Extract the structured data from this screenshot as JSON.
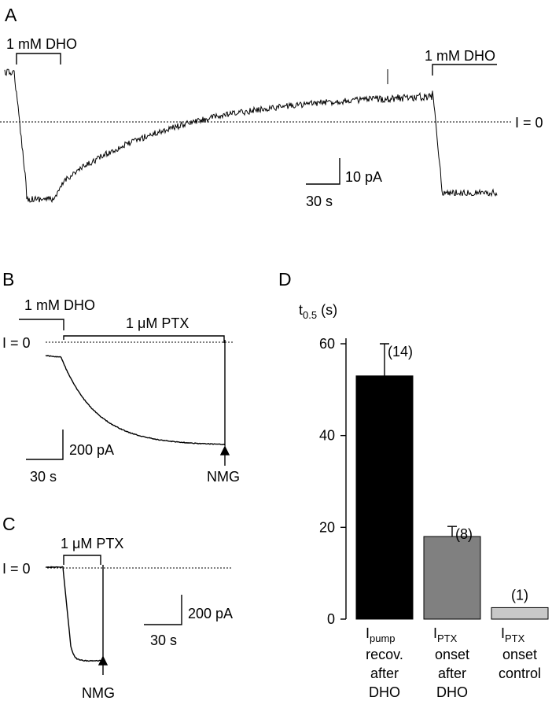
{
  "panels": {
    "a": {
      "letter": "A",
      "drug_label_1": "1 mM DHO",
      "drug_label_2": "1 mM DHO",
      "zero_label": "I = 0",
      "scale_y_label": "10 pA",
      "scale_x_label": "30 s"
    },
    "b": {
      "letter": "B",
      "drug_label_1": "1 mM DHO",
      "drug_label_2": "1 μM PTX",
      "zero_label": "I = 0",
      "scale_y_label": "200 pA",
      "scale_x_label": "30 s",
      "arrow_label": "NMG"
    },
    "c": {
      "letter": "C",
      "drug_label": "1 μM PTX",
      "zero_label": "I = 0",
      "scale_y_label": "200 pA",
      "scale_x_label": "30 s",
      "arrow_label": "NMG"
    },
    "d": {
      "letter": "D"
    }
  },
  "chart_data": [
    {
      "panel": "D",
      "type": "bar",
      "ylabel": "t0.5 (s)",
      "ylim": [
        0,
        60
      ],
      "yticks": [
        0,
        20,
        40,
        60
      ],
      "grid": false,
      "categories": [
        {
          "main": "I",
          "sub": "pump",
          "lines": [
            "recov.",
            "after",
            "DHO"
          ]
        },
        {
          "main": "I",
          "sub": "PTX",
          "lines": [
            "onset",
            "after",
            "DHO"
          ]
        },
        {
          "main": "I",
          "sub": "PTX",
          "lines": [
            "onset",
            "control"
          ]
        }
      ],
      "values": [
        53,
        18,
        2.5
      ],
      "errors": [
        7,
        2.2,
        null
      ],
      "n_labels": [
        "(14)",
        "(8)",
        "(1)"
      ],
      "colors": [
        "#000000",
        "#808080",
        "#c8c8c8"
      ]
    }
  ]
}
